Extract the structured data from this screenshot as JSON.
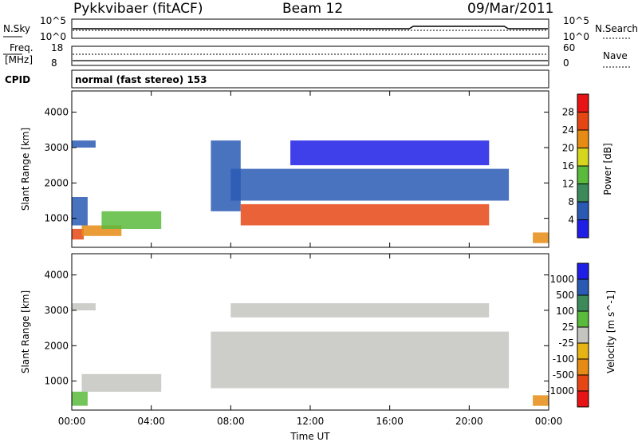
{
  "header": {
    "station": "Pykkvibaer (fitACF)",
    "beam": "Beam 12",
    "date": "09/Mar/2011"
  },
  "strip_panel": {
    "nsky_label": "N.Sky",
    "nsky_ticks": [
      "10^5",
      "10^0"
    ],
    "nsearch_label": "N.Search",
    "nsearch_ticks": [
      "10^5",
      "10^0"
    ],
    "freq_label_1": "Freq.",
    "freq_label_2": "[MHz]",
    "freq_ticks": [
      "18",
      "8"
    ],
    "nave_label": "Nave",
    "nave_ticks": [
      "60",
      "0"
    ],
    "cpid_label": "CPID",
    "cpid_text": "normal (fast stereo) 153"
  },
  "chart_data": [
    {
      "type": "heatmap",
      "name": "power",
      "ylabel": "Slant Range [km]",
      "ylim": [
        180,
        4600
      ],
      "yticks": [
        1000,
        2000,
        3000,
        4000
      ],
      "xlabel": "",
      "xlim": [
        0,
        24
      ],
      "xticks": [
        "00:00",
        "04:00",
        "08:00",
        "12:00",
        "16:00",
        "20:00",
        "00:00"
      ],
      "colorbar": {
        "label": "Power [dB]",
        "ticks": [
          "4",
          "8",
          "12",
          "16",
          "20",
          "24",
          "28"
        ],
        "colors": [
          "#1e1ee6",
          "#2a5ab4",
          "#3c8a5a",
          "#5aba3c",
          "#d6d61e",
          "#e68c14",
          "#e64614",
          "#e61414"
        ]
      },
      "echo_bands": [
        {
          "t0": 0.0,
          "t1": 0.6,
          "r0": 400,
          "r1": 700,
          "level": 6
        },
        {
          "t0": 0.5,
          "t1": 2.5,
          "r0": 500,
          "r1": 800,
          "level": 5
        },
        {
          "t0": 1.5,
          "t1": 4.5,
          "r0": 700,
          "r1": 1200,
          "level": 3
        },
        {
          "t0": 0.0,
          "t1": 1.2,
          "r0": 3000,
          "r1": 3200,
          "level": 1
        },
        {
          "t0": 0.0,
          "t1": 0.8,
          "r0": 800,
          "r1": 1600,
          "level": 1
        },
        {
          "t0": 7.0,
          "t1": 8.5,
          "r0": 1200,
          "r1": 3200,
          "level": 1
        },
        {
          "t0": 8.0,
          "t1": 22.0,
          "r0": 1500,
          "r1": 2400,
          "level": 1
        },
        {
          "t0": 8.5,
          "t1": 21.0,
          "r0": 800,
          "r1": 1400,
          "level": 6
        },
        {
          "t0": 11.0,
          "t1": 21.0,
          "r0": 2500,
          "r1": 3200,
          "level": 0
        },
        {
          "t0": 23.2,
          "t1": 24.0,
          "r0": 300,
          "r1": 600,
          "level": 5
        }
      ]
    },
    {
      "type": "heatmap",
      "name": "velocity",
      "ylabel": "Slant Range [km]",
      "ylim": [
        180,
        4600
      ],
      "yticks": [
        1000,
        2000,
        3000,
        4000
      ],
      "xlabel": "Time UT",
      "xlim": [
        0,
        24
      ],
      "xticks": [
        "00:00",
        "04:00",
        "08:00",
        "12:00",
        "16:00",
        "20:00",
        "00:00"
      ],
      "colorbar": {
        "label": "Velocity [m s^-1]",
        "ticks": [
          "1000",
          "500",
          "100",
          "25",
          "-25",
          "-100",
          "-500",
          "-1000"
        ],
        "colors": [
          "#1e1ee6",
          "#2a5ab4",
          "#3c8a5a",
          "#5aba3c",
          "#c4c4c0",
          "#e6b414",
          "#e68c14",
          "#e64614",
          "#e61414"
        ]
      },
      "echo_bands": [
        {
          "t0": 0.0,
          "t1": 0.8,
          "r0": 300,
          "r1": 700,
          "level": 3
        },
        {
          "t0": 0.5,
          "t1": 4.5,
          "r0": 700,
          "r1": 1200,
          "level": 4
        },
        {
          "t0": 7.0,
          "t1": 22.0,
          "r0": 800,
          "r1": 2400,
          "level": 4
        },
        {
          "t0": 8.0,
          "t1": 21.0,
          "r0": 2800,
          "r1": 3200,
          "level": 4
        },
        {
          "t0": 0.0,
          "t1": 1.2,
          "r0": 3000,
          "r1": 3200,
          "level": 4
        },
        {
          "t0": 23.2,
          "t1": 24.0,
          "r0": 300,
          "r1": 600,
          "level": 6
        }
      ]
    }
  ]
}
